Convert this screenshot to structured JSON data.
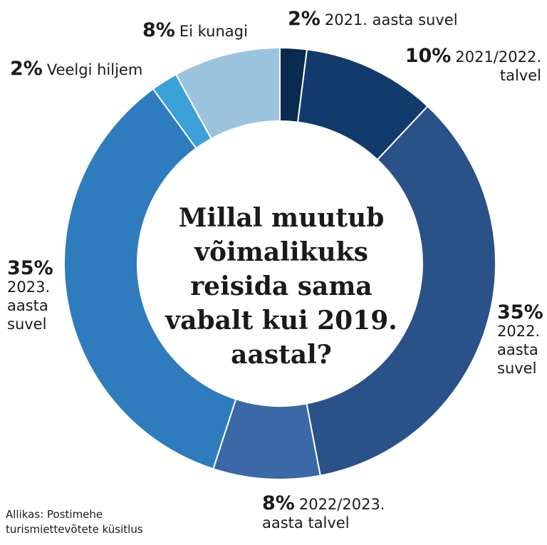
{
  "chart_data": {
    "type": "pie",
    "title": "Millal muutub võimalikuks reisida sama vabalt kui 2019. aastal?",
    "unit": "%",
    "slices": [
      {
        "pct": "2%",
        "label": "2021. aasta suvel",
        "value": 2,
        "color": "#0b2a4f"
      },
      {
        "pct": "10%",
        "label": "2021/2022. talvel",
        "value": 10,
        "color": "#123a6a"
      },
      {
        "pct": "35%",
        "label": "2022. aasta suvel",
        "value": 35,
        "color": "#2b5189"
      },
      {
        "pct": "8%",
        "label": "2022/2023. aasta talvel",
        "value": 8,
        "color": "#3b68a6"
      },
      {
        "pct": "35%",
        "label": "2023. aasta suvel",
        "value": 35,
        "color": "#2e7cbd"
      },
      {
        "pct": "2%",
        "label": "Veelgi hiljem",
        "value": 2,
        "color": "#3ba0d8"
      },
      {
        "pct": "8%",
        "label": "Ei kunagi",
        "value": 8,
        "color": "#9cc3de"
      }
    ]
  },
  "source": "Allikas: Postimehe turismiettevõtete küsitlus"
}
